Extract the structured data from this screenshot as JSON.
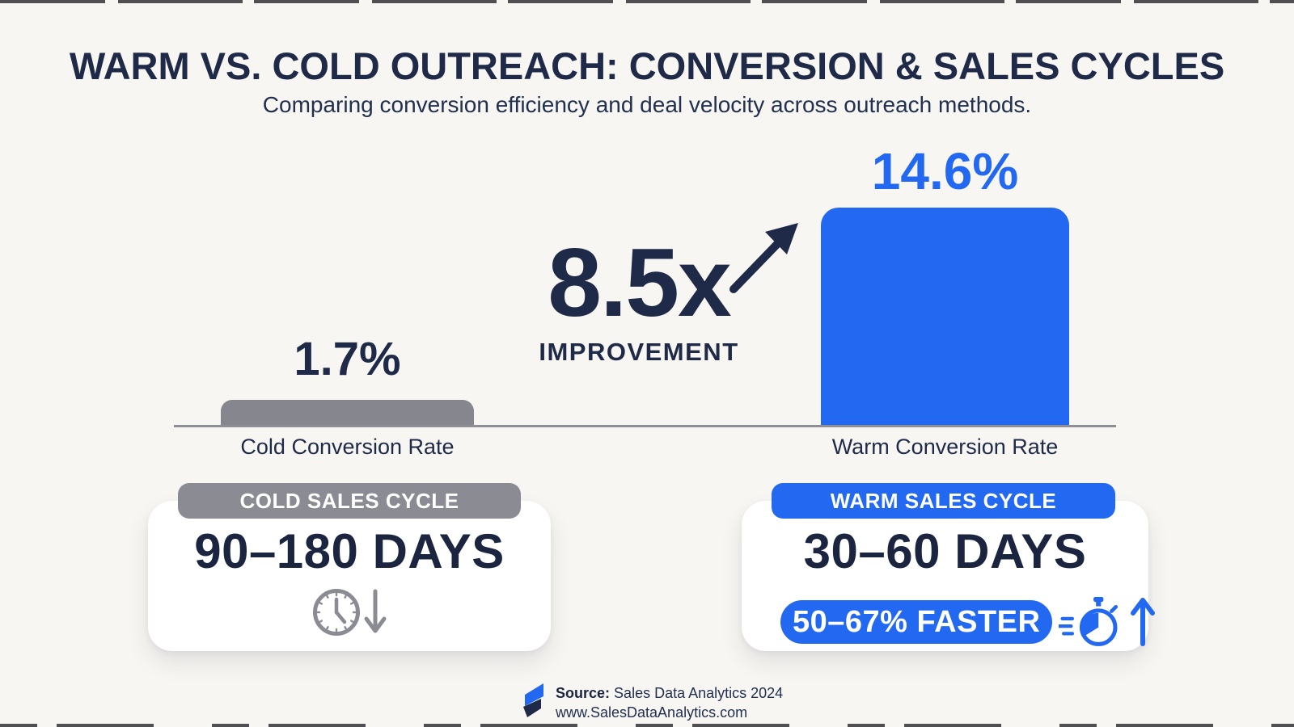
{
  "header": {
    "title": "WARM VS. COLD OUTREACH: CONVERSION & SALES CYCLES",
    "subtitle": "Comparing conversion efficiency and deal velocity across outreach methods."
  },
  "chart_data": {
    "type": "bar",
    "categories": [
      "Cold Conversion Rate",
      "Warm Conversion Rate"
    ],
    "values": [
      1.7,
      14.6
    ],
    "value_labels": [
      "1.7%",
      "14.6%"
    ],
    "bar_colors": [
      "#85868E",
      "#2268F0"
    ],
    "ylim": [
      0,
      16
    ],
    "grid": false,
    "legend": "none",
    "annotation": {
      "multiplier": "8.5x",
      "caption": "IMPROVEMENT",
      "arrow": "up-right"
    }
  },
  "cards": {
    "cold": {
      "header": "COLD SALES CYCLE",
      "duration": "90–180 DAYS",
      "icons": [
        "clock-icon",
        "arrow-down-icon"
      ]
    },
    "warm": {
      "header": "WARM SALES CYCLE",
      "duration": "30–60 DAYS",
      "badge": "50–67% FASTER",
      "icons": [
        "stopwatch-icon",
        "arrow-up-icon"
      ]
    }
  },
  "footer": {
    "source_label": "Source:",
    "source_value": "Sales Data Analytics 2024",
    "website": "www.SalesDataAnalytics.com",
    "logo": "sales-data-analytics-logo"
  },
  "colors": {
    "background": "#F8F6F2",
    "navy": "#1E2A47",
    "blue": "#2268F0",
    "gray_bar": "#85868E",
    "gray_pill": "#8A8B93",
    "card_white": "#FFFFFF"
  }
}
